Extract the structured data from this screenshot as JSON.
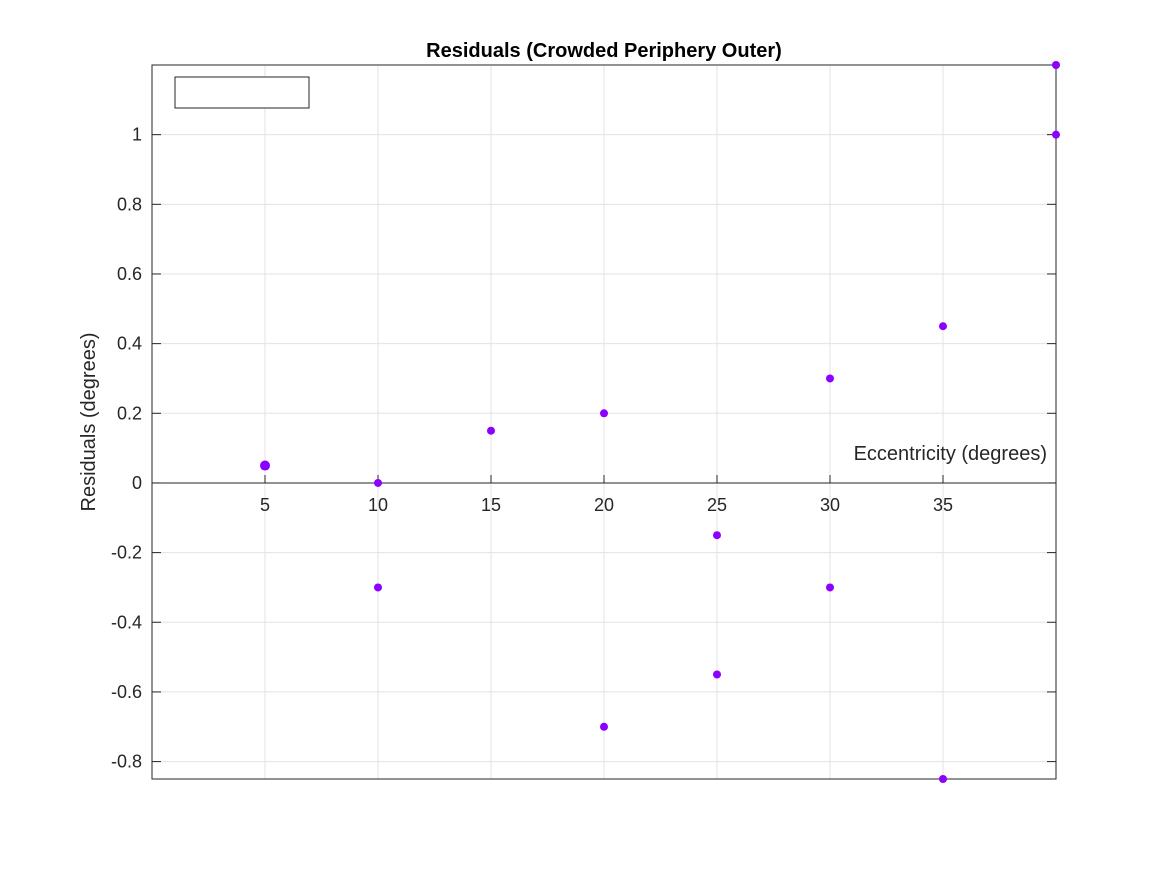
{
  "chart_data": {
    "type": "scatter",
    "title": "Residuals (Crowded Periphery Outer)",
    "xlabel": "Eccentricity (degrees)",
    "ylabel": "Residuals (degrees)",
    "xlim": [
      0,
      40
    ],
    "ylim": [
      -0.85,
      1.2
    ],
    "x_ticks": [
      "5",
      "10",
      "15",
      "20",
      "25",
      "30",
      "35"
    ],
    "y_ticks": [
      "-0.8",
      "-0.6",
      "-0.4",
      "-0.2",
      "0",
      "0.2",
      "0.4",
      "0.6",
      "0.8",
      "1"
    ],
    "grid": true,
    "x_axis_at_zero": true,
    "legend": "top-left (empty)",
    "marker_color": "#8b00ff",
    "series": [
      {
        "points": [
          {
            "x": 5,
            "y": 0.05
          },
          {
            "x": 10,
            "y": 0.0
          },
          {
            "x": 10,
            "y": -0.3
          },
          {
            "x": 15,
            "y": 0.15
          },
          {
            "x": 20,
            "y": 0.2
          },
          {
            "x": 20,
            "y": -0.7
          },
          {
            "x": 25,
            "y": -0.15
          },
          {
            "x": 25,
            "y": -0.55
          },
          {
            "x": 30,
            "y": 0.3
          },
          {
            "x": 30,
            "y": -0.3
          },
          {
            "x": 35,
            "y": 0.45
          },
          {
            "x": 35,
            "y": -0.85
          },
          {
            "x": 40,
            "y": 1.2
          },
          {
            "x": 40,
            "y": 1.0
          }
        ]
      }
    ]
  }
}
